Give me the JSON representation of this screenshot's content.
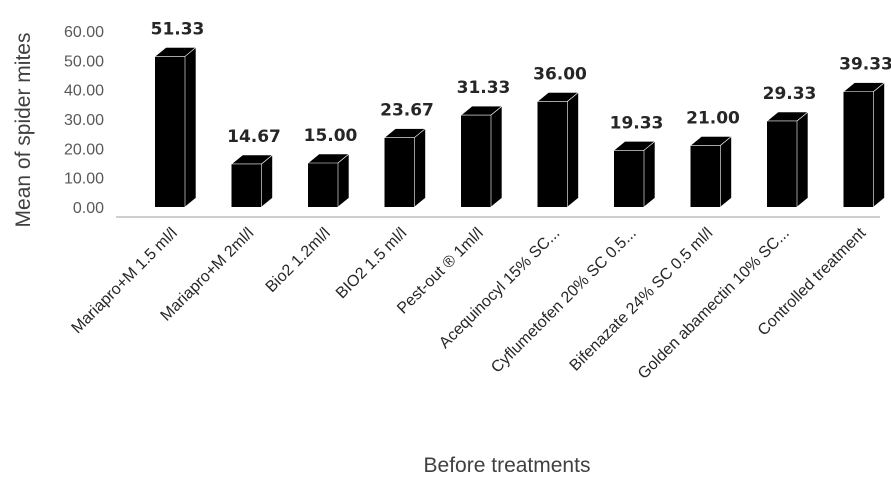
{
  "chart_data": {
    "type": "bar",
    "style": "3d-column",
    "bar_color": "#000000",
    "categories": [
      "Mariapro+M 1.5 ml/l",
      "Mariapro+M 2ml/l",
      "Bio2 1.2ml/l",
      "BIO2 1.5 ml/l",
      "Pest-out ® 1ml/l",
      "Acequinocyl 15% SC...",
      "Cyflumetofen 20% SC 0.5...",
      "Bifenazate 24% SC 0.5 ml/l",
      "Golden abamectin 10% SC...",
      "Controlled treatment"
    ],
    "values": [
      51.33,
      14.67,
      15.0,
      23.67,
      31.33,
      36.0,
      19.33,
      21.0,
      29.33,
      39.33
    ],
    "data_labels": [
      "51.33",
      "14.67",
      "15.00",
      "23.67",
      "31.33",
      "36.00",
      "19.33",
      "21.00",
      "29.33",
      "39.33"
    ],
    "yticks": [
      "0.00",
      "10.00",
      "20.00",
      "30.00",
      "40.00",
      "50.00",
      "60.00"
    ],
    "ylim": [
      0,
      60
    ],
    "ylabel": "Mean of spider mites",
    "xlabel": "Before treatments",
    "grid": false,
    "legend": false
  }
}
